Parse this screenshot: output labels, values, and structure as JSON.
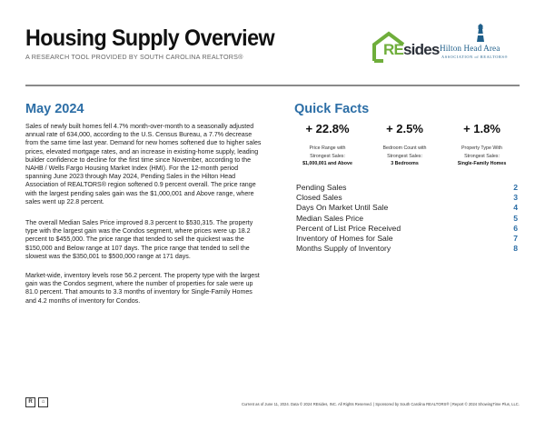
{
  "header": {
    "title": "Housing Supply Overview",
    "subtitle": "A RESEARCH TOOL PROVIDED BY SOUTH CAROLINA REALTORS®",
    "logo_resides_prefix": "RE",
    "logo_resides_suffix": "sides",
    "logo_hh_name": "Hilton Head Area",
    "logo_hh_assoc": "ASSOCIATION of REALTORS®"
  },
  "month_section": {
    "heading": "May 2024",
    "paragraphs": [
      "Sales of newly built homes fell 4.7% month-over-month to a seasonally adjusted annual rate of 634,000, according to the U.S. Census Bureau, a 7.7% decrease from the same time last year. Demand for new homes softened due to higher sales prices, elevated mortgage rates, and an increase in existing-home supply, leading builder confidence to decline for the first time since November, according to the NAHB / Wells Fargo Housing Market Index (HMI). For the 12-month period spanning June 2023 through May 2024, Pending Sales in the Hilton Head Association of REALTORS® region softened 0.9 percent overall. The price range with the largest pending sales gain was the $1,000,001 and Above range, where sales went up 22.8 percent.",
      "The overall Median Sales Price improved 8.3 percent to $530,315. The property type with the largest gain was the Condos segment, where prices were up 18.2 percent to $455,000. The price range that tended to sell the quickest was the $150,000 and Below range at 107 days. The price range that tended to sell the slowest was the $350,001 to $500,000 range at 171 days.",
      "Market-wide, inventory levels rose 56.2 percent. The property type with the largest gain was the Condos segment, where the number of properties for sale were up 81.0 percent. That amounts to 3.3 months of inventory for Single-Family Homes and 4.2 months of inventory for Condos."
    ]
  },
  "quick_facts": {
    "heading": "Quick Facts",
    "stats": [
      {
        "value": "+ 22.8%",
        "label1": "Price Range with",
        "label2": "Strongest Sales:",
        "sub": "$1,000,001 and Above"
      },
      {
        "value": "+ 2.5%",
        "label1": "Bedroom Count with",
        "label2": "Strongest Sales:",
        "sub": "3 Bedrooms"
      },
      {
        "value": "+ 1.8%",
        "label1": "Property Type With",
        "label2": "Strongest Sales:",
        "sub": "Single-Family Homes"
      }
    ],
    "toc": [
      {
        "label": "Pending Sales",
        "page": "2"
      },
      {
        "label": "Closed Sales",
        "page": "3"
      },
      {
        "label": "Days On Market Until Sale",
        "page": "4"
      },
      {
        "label": "Median Sales Price",
        "page": "5"
      },
      {
        "label": "Percent of List Price Received",
        "page": "6"
      },
      {
        "label": "Inventory of Homes for Sale",
        "page": "7"
      },
      {
        "label": "Months Supply of Inventory",
        "page": "8"
      }
    ]
  },
  "footer": {
    "icon1": "R",
    "icon2": "⌂",
    "text": "Current as of June 11, 2024. Data © 2024 REsides, INC. All Rights Reserved. | Sponsored by South Carolina REALTORS® | Report © 2024 ShowingTime Plus, LLC."
  }
}
